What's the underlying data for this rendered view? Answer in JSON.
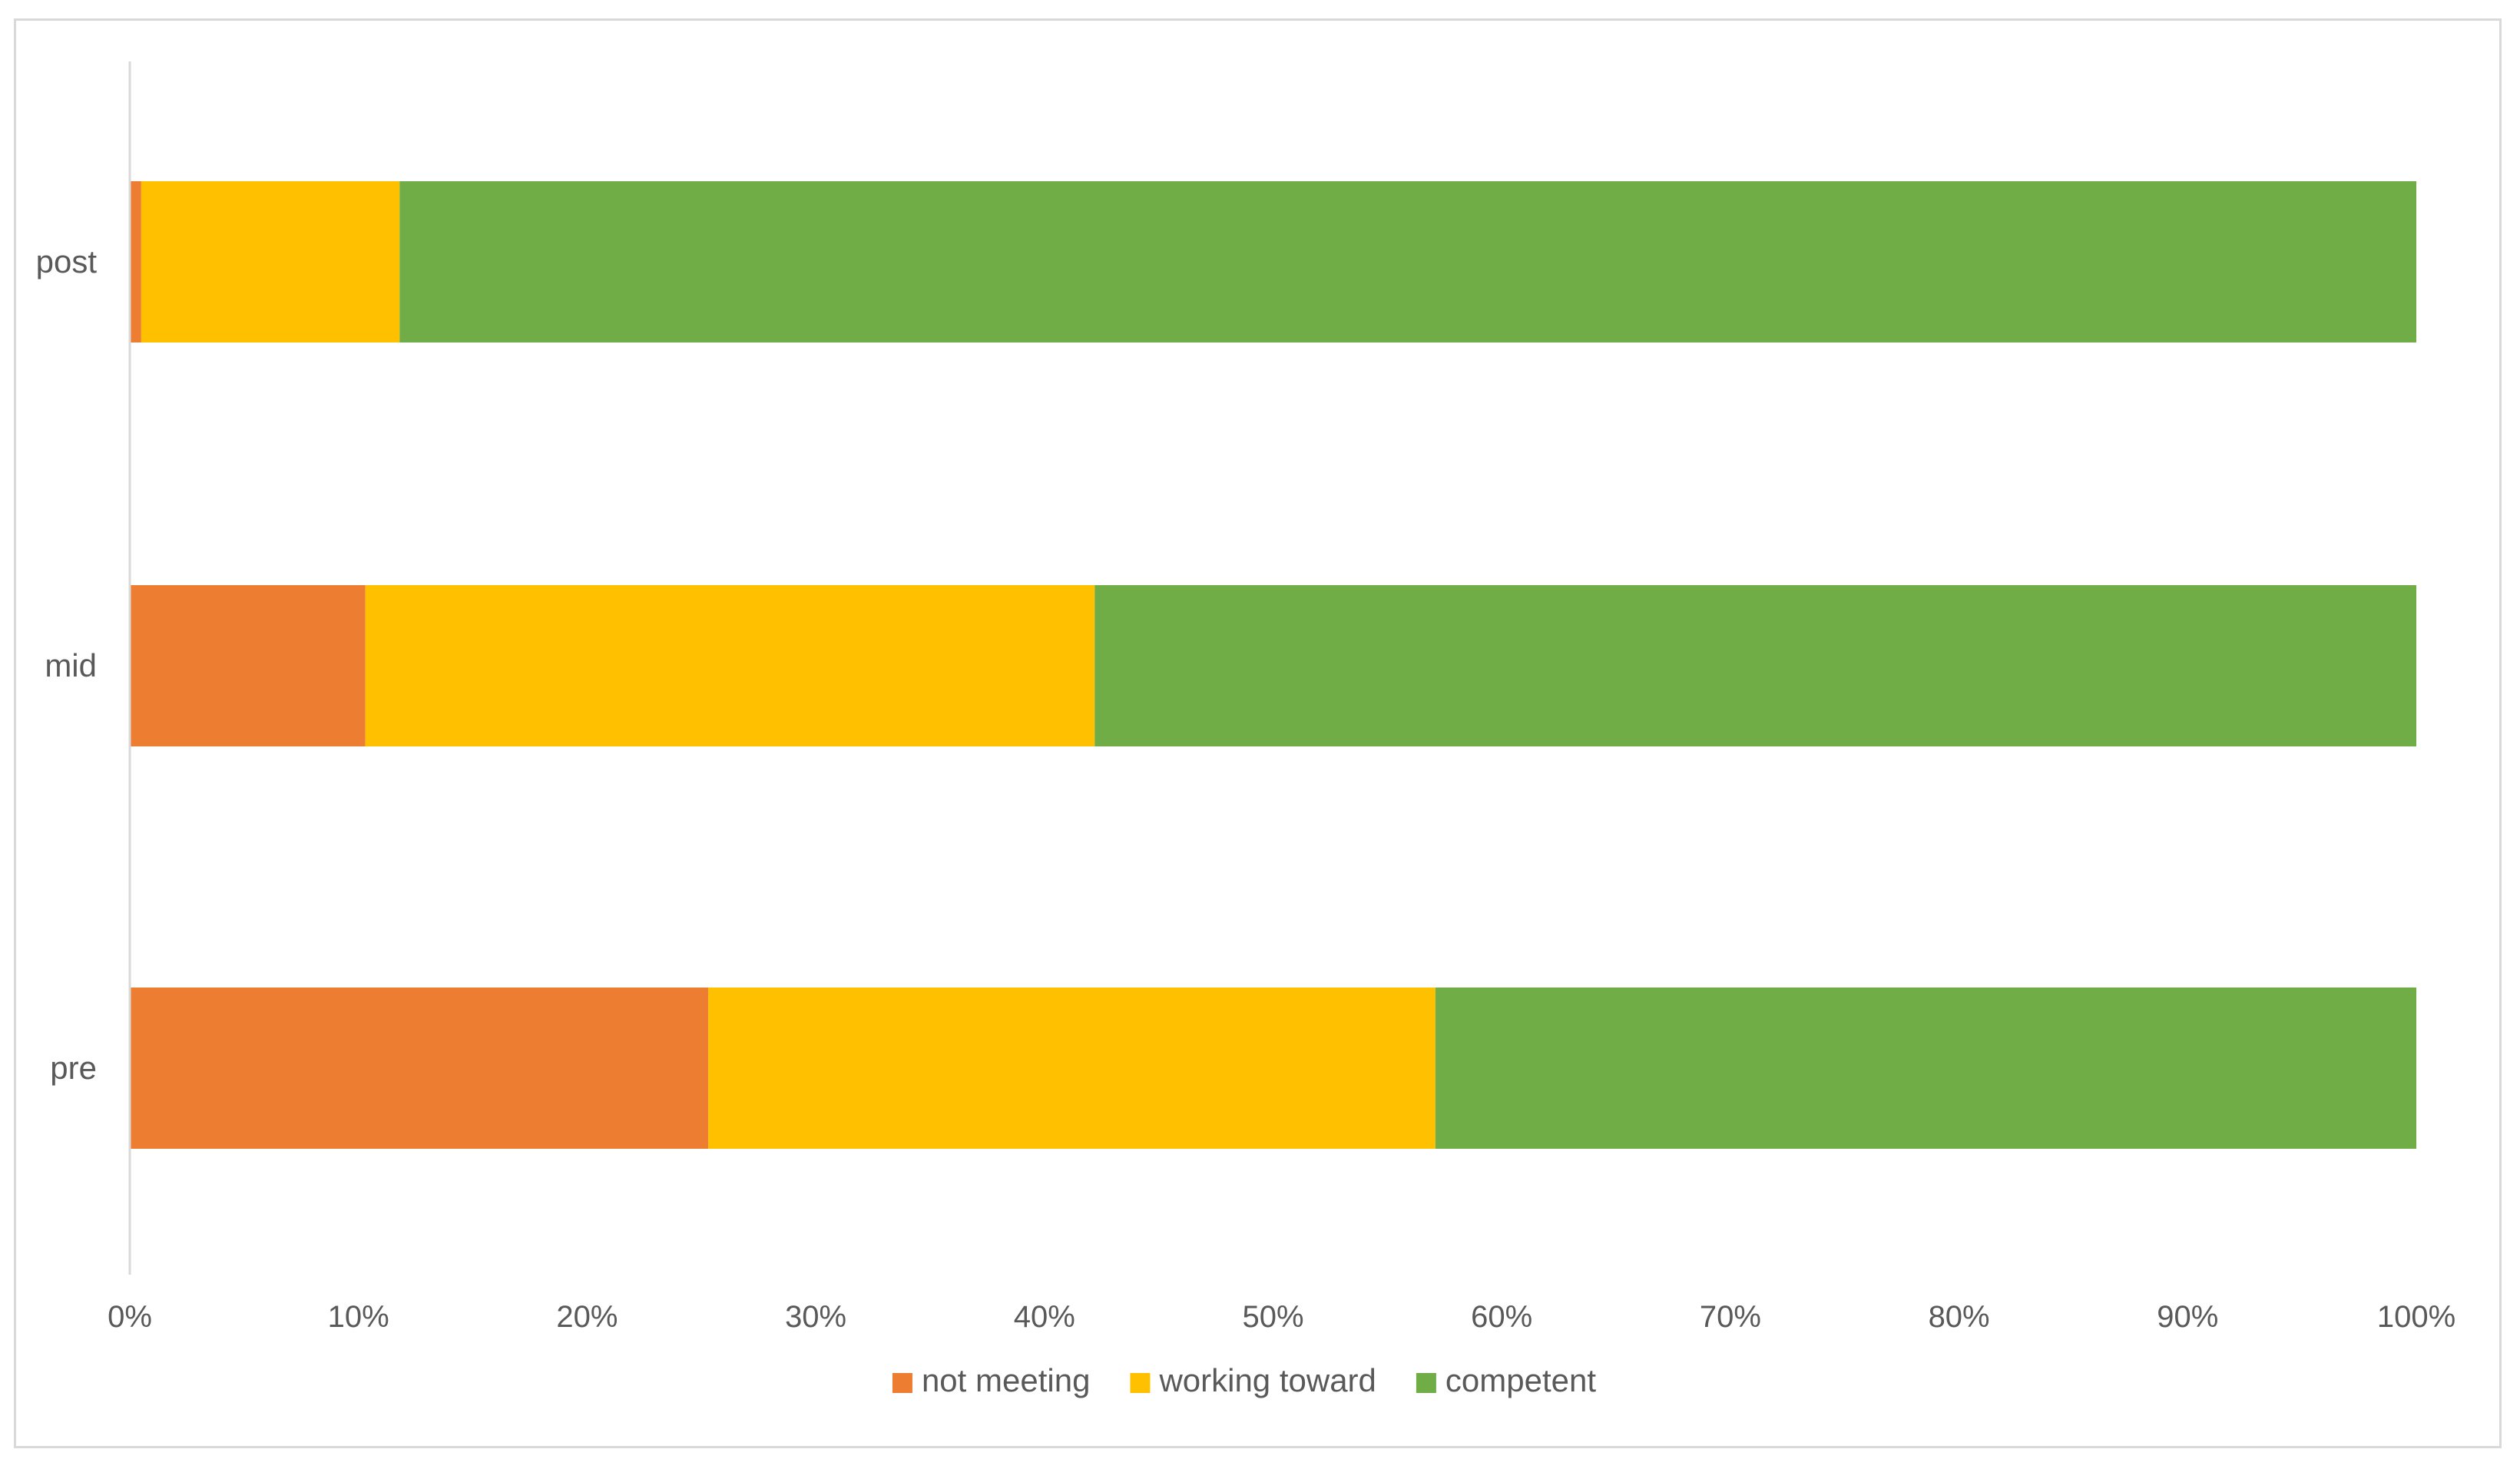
{
  "chart_data": {
    "type": "bar",
    "orientation": "horizontal",
    "stacked": "percent",
    "categories": [
      "pre",
      "mid",
      "post"
    ],
    "series": [
      {
        "name": "not meeting",
        "values": [
          25.3,
          10.3,
          0.5
        ],
        "color": "#ED7D31"
      },
      {
        "name": "working toward",
        "values": [
          31.8,
          31.9,
          11.3
        ],
        "color": "#FFC000"
      },
      {
        "name": "competent",
        "values": [
          42.9,
          57.8,
          88.2
        ],
        "color": "#70AD47"
      }
    ],
    "x_ticks": [
      "0%",
      "10%",
      "20%",
      "30%",
      "40%",
      "50%",
      "60%",
      "70%",
      "80%",
      "90%",
      "100%"
    ],
    "xlim": [
      0,
      100
    ],
    "title": "",
    "xlabel": "",
    "ylabel": "",
    "grid": false,
    "legend_position": "bottom",
    "axis_color": "#d9d9d9",
    "text_color": "#595959"
  }
}
